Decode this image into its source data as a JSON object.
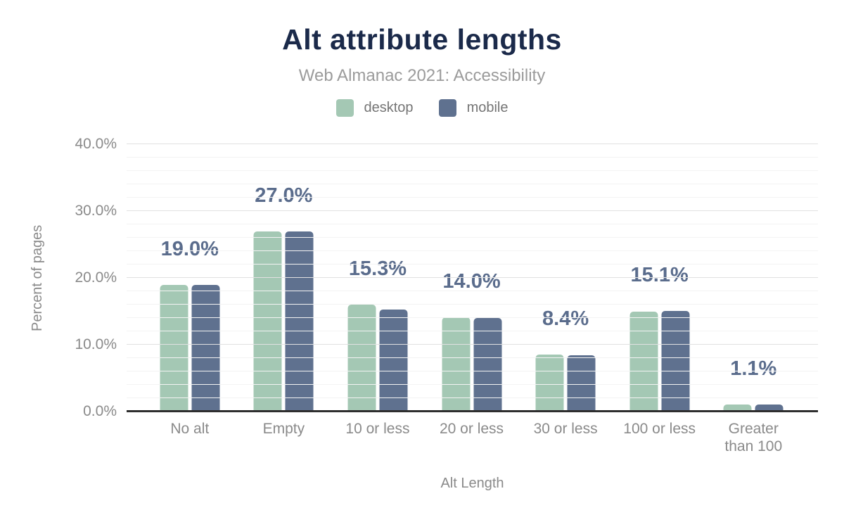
{
  "chart_data": {
    "type": "bar",
    "title": "Alt attribute lengths",
    "subtitle": "Web Almanac 2021: Accessibility",
    "xlabel": "Alt Length",
    "ylabel": "Percent of pages",
    "categories": [
      "No alt",
      "Empty",
      "10 or less",
      "20 or less",
      "30 or less",
      "100 or less",
      "Greater than 100"
    ],
    "series": [
      {
        "name": "desktop",
        "color": "#a4c8b4",
        "values": [
          19.0,
          26.9,
          16.0,
          14.1,
          8.5,
          14.9,
          1.1
        ]
      },
      {
        "name": "mobile",
        "color": "#5f718f",
        "values": [
          19.0,
          27.0,
          15.3,
          14.0,
          8.4,
          15.1,
          1.1
        ]
      }
    ],
    "data_labels": [
      "19.0%",
      "27.0%",
      "15.3%",
      "14.0%",
      "8.4%",
      "15.1%",
      "1.1%"
    ],
    "data_label_series": "mobile",
    "ylim": [
      0,
      40
    ],
    "yticks": [
      "0.0%",
      "10.0%",
      "20.0%",
      "30.0%",
      "40.0%"
    ],
    "ytick_values": [
      0,
      10,
      20,
      30,
      40
    ],
    "grid": {
      "major_step": 10,
      "minor_step": 2,
      "major_color": "#e1e1e1",
      "minor_color": "#f3f3f3"
    },
    "legend_position": "top",
    "colors": {
      "title": "#1b2a4a",
      "subtitle": "#9b9b9b",
      "axis_text": "#8a8a8a",
      "data_label": "#5a6c8c",
      "axis_line": "#2e2e2e",
      "background": "#ffffff"
    }
  }
}
